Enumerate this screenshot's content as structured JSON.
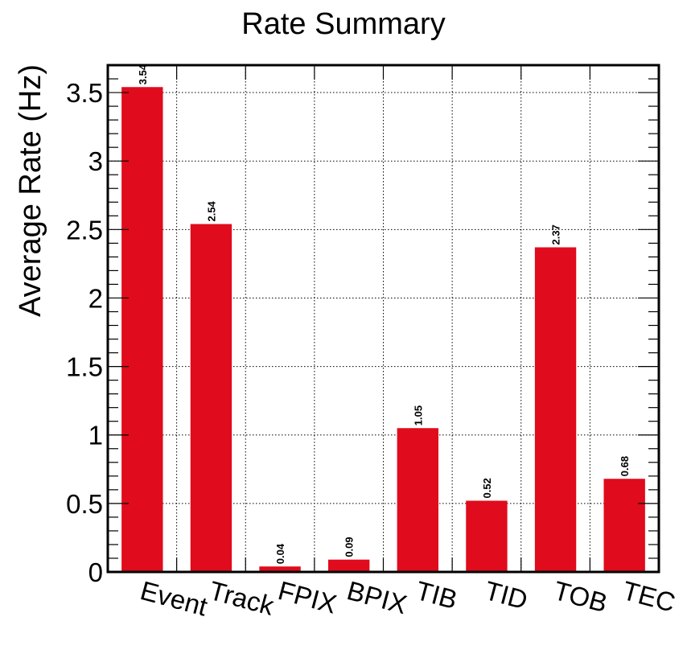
{
  "chart_data": {
    "type": "bar",
    "title": "Rate Summary",
    "xlabel": "",
    "ylabel": "Average Rate (Hz)",
    "categories": [
      "Event",
      "Track",
      "FPIX",
      "BPIX",
      "TIB",
      "TID",
      "TOB",
      "TEC"
    ],
    "values": [
      3.54,
      2.54,
      0.04,
      0.09,
      1.05,
      0.52,
      2.37,
      0.68
    ],
    "value_labels": [
      "3.54",
      "2.54",
      "0.04",
      "0.09",
      "1.05",
      "0.52",
      "2.37",
      "0.68"
    ],
    "ylim": [
      0,
      3.7
    ],
    "yticks": [
      0,
      0.5,
      1,
      1.5,
      2,
      2.5,
      3,
      3.5
    ],
    "ytick_labels": [
      "0",
      "0.5",
      "1",
      "1.5",
      "2",
      "2.5",
      "3",
      "3.5"
    ],
    "grid": true,
    "bar_color": "#e00b1c"
  }
}
